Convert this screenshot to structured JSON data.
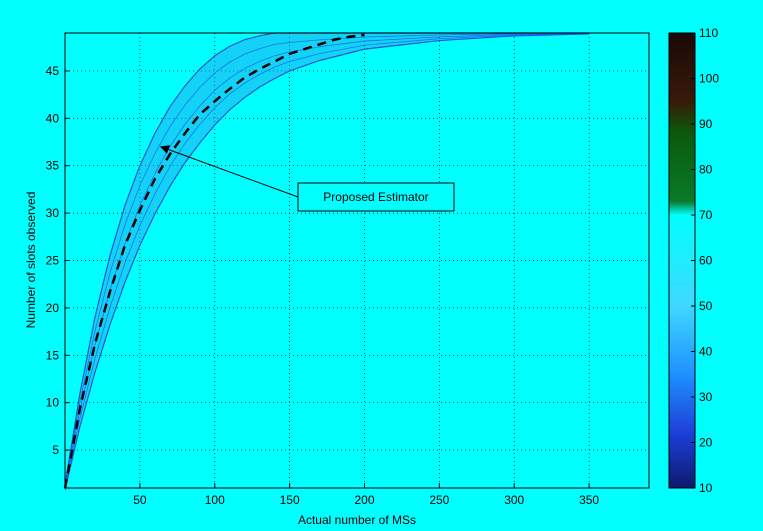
{
  "chart_data": {
    "type": "line",
    "xlabel": "Actual number of MSs",
    "ylabel": "Number of slots observed",
    "xlim": [
      0,
      390
    ],
    "ylim": [
      1,
      49
    ],
    "grid": true,
    "background_color": "#00ffff",
    "x_ticks": [
      50,
      100,
      150,
      200,
      250,
      300,
      350
    ],
    "y_ticks": [
      5,
      10,
      15,
      20,
      25,
      30,
      35,
      40,
      45
    ],
    "series": [
      {
        "name": "Proposed Estimator",
        "style": "dashed",
        "color": "#000000",
        "x": [
          0,
          10,
          20,
          30,
          40,
          50,
          60,
          70,
          80,
          90,
          100,
          110,
          120,
          130,
          140,
          150,
          160,
          170,
          180,
          190,
          200
        ],
        "y": [
          1,
          9.4,
          16.2,
          21.7,
          26.6,
          30.3,
          33.6,
          36.2,
          38.4,
          40.4,
          41.8,
          43.1,
          44.3,
          45.2,
          46.0,
          46.8,
          47.3,
          47.8,
          48.3,
          48.6,
          48.8
        ]
      }
    ],
    "band": {
      "color": "#1e56cc",
      "x": [
        0,
        10,
        20,
        30,
        40,
        50,
        60,
        70,
        80,
        90,
        100,
        110,
        120,
        130,
        140,
        150,
        170,
        200,
        250,
        300,
        350
      ],
      "upper": [
        1.3,
        11.0,
        19.0,
        25.5,
        30.8,
        35.0,
        38.4,
        41.2,
        43.4,
        45.2,
        46.6,
        47.6,
        48.3,
        48.7,
        49,
        49,
        49,
        49,
        49,
        49,
        49
      ],
      "lower": [
        0.8,
        7.5,
        13.2,
        18.2,
        22.7,
        26.6,
        29.9,
        32.8,
        35.3,
        37.4,
        39.3,
        40.9,
        42.2,
        43.3,
        44.2,
        45.0,
        46.1,
        47.3,
        48.2,
        48.7,
        48.9
      ]
    },
    "annotation": {
      "text": "Proposed Estimator",
      "arrow_target": [
        64,
        37
      ]
    },
    "colorbar": {
      "min": 10,
      "max": 110,
      "ticks": [
        10,
        20,
        30,
        40,
        50,
        60,
        70,
        80,
        90,
        100,
        110
      ],
      "stops": [
        {
          "value": 10,
          "color": "#0b1a6b"
        },
        {
          "value": 22,
          "color": "#1e3fd8"
        },
        {
          "value": 35,
          "color": "#1e90ff"
        },
        {
          "value": 50,
          "color": "#3fd8ff"
        },
        {
          "value": 70,
          "color": "#00ffff"
        },
        {
          "value": 73,
          "color": "#0a7a2a"
        },
        {
          "value": 88,
          "color": "#0b5a0b"
        },
        {
          "value": 95,
          "color": "#3a1a0a"
        },
        {
          "value": 110,
          "color": "#1a0808"
        }
      ]
    }
  }
}
